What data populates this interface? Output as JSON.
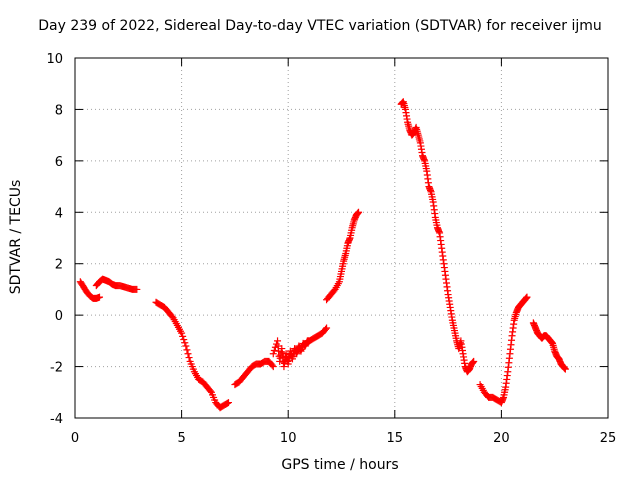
{
  "chart_data": {
    "type": "scatter",
    "title": "Day 239 of 2022, Sidereal Day-to-day VTEC variation (SDTVAR) for receiver ijmu",
    "xlabel": "GPS time / hours",
    "ylabel": "SDTVAR / TECUs",
    "xlim": [
      0,
      25
    ],
    "ylim": [
      -4,
      10
    ],
    "xticks": [
      0,
      5,
      10,
      15,
      20,
      25
    ],
    "yticks": [
      -4,
      -2,
      0,
      2,
      4,
      6,
      8,
      10
    ],
    "grid": true,
    "marker": "plus",
    "color": "#ff0000",
    "segments": [
      {
        "x": [
          0.25,
          0.4,
          0.55,
          0.7,
          0.85,
          1.0,
          1.15
        ],
        "y": [
          1.3,
          1.1,
          0.9,
          0.75,
          0.65,
          0.65,
          0.7
        ]
      },
      {
        "x": [
          1.0,
          1.15,
          1.3,
          1.45,
          1.6,
          1.75,
          1.9,
          2.1,
          2.3,
          2.5,
          2.7,
          2.9
        ],
        "y": [
          1.15,
          1.3,
          1.4,
          1.35,
          1.3,
          1.2,
          1.15,
          1.15,
          1.1,
          1.05,
          1.0,
          1.0
        ]
      },
      {
        "x": [
          3.8,
          4.0,
          4.2,
          4.4,
          4.6,
          4.8,
          5.0,
          5.2,
          5.4,
          5.6,
          5.8,
          6.0,
          6.2,
          6.4,
          6.6,
          6.8,
          7.0,
          7.2
        ],
        "y": [
          0.5,
          0.4,
          0.3,
          0.1,
          -0.1,
          -0.4,
          -0.7,
          -1.2,
          -1.8,
          -2.2,
          -2.5,
          -2.6,
          -2.8,
          -3.0,
          -3.4,
          -3.6,
          -3.5,
          -3.4
        ]
      },
      {
        "x": [
          7.5,
          7.7,
          7.9,
          8.1,
          8.3,
          8.5,
          8.7,
          8.9,
          9.1,
          9.3
        ],
        "y": [
          -2.7,
          -2.6,
          -2.4,
          -2.2,
          -2.0,
          -1.9,
          -1.9,
          -1.8,
          -1.8,
          -2.0
        ]
      },
      {
        "x": [
          9.3,
          9.5,
          9.6,
          9.7,
          9.8,
          9.9,
          10.0,
          10.1,
          10.2,
          10.3,
          10.4,
          10.5,
          10.6,
          10.7,
          10.8,
          10.9,
          11.0,
          11.2,
          11.4,
          11.6,
          11.8
        ],
        "y": [
          -1.5,
          -1.0,
          -1.8,
          -1.3,
          -2.0,
          -1.5,
          -1.9,
          -1.4,
          -1.7,
          -1.3,
          -1.5,
          -1.2,
          -1.4,
          -1.1,
          -1.2,
          -1.0,
          -1.0,
          -0.9,
          -0.8,
          -0.7,
          -0.5
        ]
      },
      {
        "x": [
          11.8,
          12.0,
          12.2,
          12.4,
          12.5,
          12.6,
          12.7,
          12.8,
          12.9,
          13.0,
          13.1,
          13.2,
          13.3
        ],
        "y": [
          0.6,
          0.8,
          1.0,
          1.3,
          1.7,
          2.1,
          2.4,
          2.8,
          3.0,
          3.4,
          3.7,
          3.9,
          4.0
        ]
      },
      {
        "x": [
          15.3,
          15.4,
          15.5,
          15.6,
          15.7,
          15.8,
          15.9,
          16.0,
          16.1,
          16.2,
          16.3,
          16.4,
          16.5,
          16.6,
          16.7,
          16.8,
          16.9,
          17.0,
          17.1,
          17.2,
          17.3,
          17.4,
          17.5,
          17.6,
          17.7,
          17.8,
          17.9,
          18.0,
          18.1,
          18.2,
          18.3,
          18.4,
          18.5,
          18.6,
          18.7
        ],
        "y": [
          8.2,
          8.3,
          8.0,
          7.5,
          7.2,
          7.0,
          7.1,
          7.3,
          7.0,
          6.7,
          6.2,
          6.0,
          5.6,
          5.0,
          4.8,
          4.4,
          3.8,
          3.4,
          3.2,
          2.6,
          2.0,
          1.4,
          0.8,
          0.3,
          -0.2,
          -0.6,
          -1.0,
          -1.3,
          -1.0,
          -1.5,
          -2.0,
          -2.2,
          -2.1,
          -1.9,
          -1.8
        ]
      },
      {
        "x": [
          19.0,
          19.2,
          19.4,
          19.6,
          19.8,
          20.0,
          20.1,
          20.2,
          20.3,
          20.4,
          20.5,
          20.6,
          20.7,
          20.8,
          20.9,
          21.0,
          21.1,
          21.2
        ],
        "y": [
          -2.7,
          -3.0,
          -3.2,
          -3.2,
          -3.3,
          -3.4,
          -3.2,
          -2.8,
          -2.2,
          -1.5,
          -0.8,
          -0.2,
          0.1,
          0.3,
          0.4,
          0.5,
          0.6,
          0.7
        ]
      },
      {
        "x": [
          21.5,
          21.6,
          21.7,
          21.8,
          21.9,
          22.0,
          22.1,
          22.2,
          22.3,
          22.4,
          22.5,
          22.6,
          22.7,
          22.8,
          22.9,
          23.0
        ],
        "y": [
          -0.3,
          -0.5,
          -0.7,
          -0.8,
          -0.9,
          -0.8,
          -0.8,
          -0.9,
          -1.0,
          -1.1,
          -1.4,
          -1.6,
          -1.7,
          -1.9,
          -2.0,
          -2.1
        ]
      }
    ]
  }
}
